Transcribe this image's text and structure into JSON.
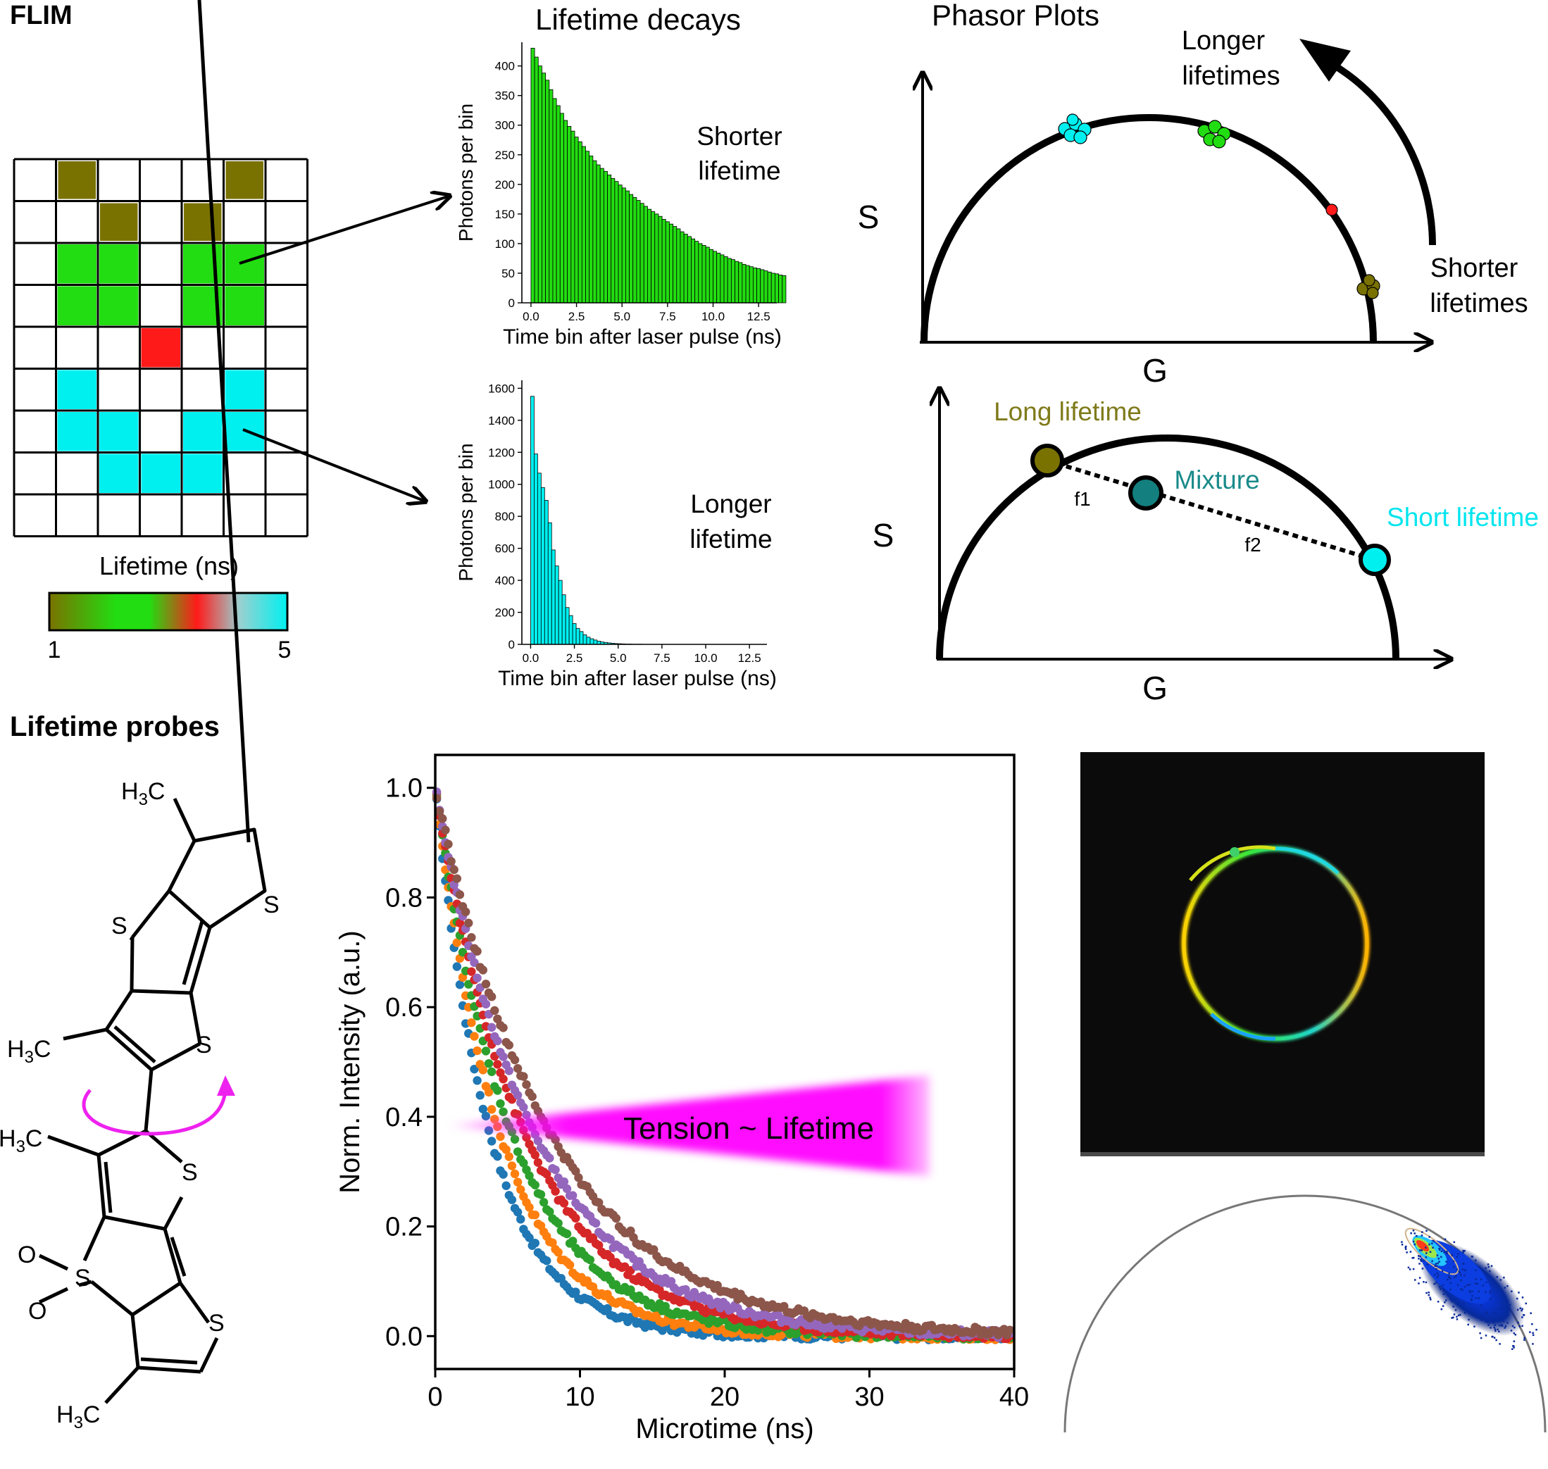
{
  "colors": {
    "olive": "#7a7200",
    "green": "#22dd11",
    "red": "#ff1a1a",
    "cyan": "#00f0f0",
    "teal": "#137f7f",
    "magenta": "#ff00ff",
    "long_label": "#7f7a1a",
    "mixture_label": "#1a8a8a",
    "short_label": "#00e5ee"
  },
  "flim": {
    "heading": "FLIM",
    "colorbar_label": "Lifetime (ns)",
    "colorbar_min": "1",
    "colorbar_max": "5",
    "grid": [
      [
        "w",
        "o",
        "w",
        "w",
        "w",
        "o",
        "w"
      ],
      [
        "w",
        "w",
        "o",
        "w",
        "o",
        "w",
        "w"
      ],
      [
        "w",
        "g",
        "g",
        "w",
        "g",
        "g",
        "w"
      ],
      [
        "w",
        "g",
        "g",
        "w",
        "g",
        "g",
        "w"
      ],
      [
        "w",
        "w",
        "w",
        "r",
        "w",
        "w",
        "w"
      ],
      [
        "w",
        "c",
        "w",
        "w",
        "w",
        "c",
        "w"
      ],
      [
        "w",
        "c",
        "c",
        "w",
        "c",
        "c",
        "w"
      ],
      [
        "w",
        "w",
        "c",
        "c",
        "c",
        "w",
        "w"
      ],
      [
        "w",
        "w",
        "w",
        "w",
        "w",
        "w",
        "w"
      ]
    ]
  },
  "decays": {
    "heading": "Lifetime decays",
    "top_label_1": "Shorter",
    "top_label_2": "lifetime",
    "bottom_label_1": "Longer",
    "bottom_label_2": "lifetime"
  },
  "phasor": {
    "heading": "Phasor Plots",
    "s_label": "S",
    "g_label": "G",
    "longer_1": "Longer",
    "longer_2": "lifetimes",
    "shorter_1": "Shorter",
    "shorter_2": "lifetimes",
    "long_lifetime": "Long lifetime",
    "mixture": "Mixture",
    "short_lifetime": "Short lifetime",
    "f1": "f1",
    "f2": "f2"
  },
  "probes": {
    "heading": "Lifetime probes",
    "tension_label": "Tension ~ Lifetime",
    "atoms": {
      "h3c": "H",
      "sub3": "3",
      "c": "C",
      "s": "S",
      "o": "O"
    }
  },
  "chart_data": [
    {
      "type": "bar",
      "id": "short-decay",
      "xlabel": "Time bin after laser pulse (ns)",
      "ylabel": "Photons per bin",
      "xlim": [
        -0.5,
        13.5
      ],
      "ylim": [
        0,
        440
      ],
      "xticks": [
        0.0,
        2.5,
        5.0,
        7.5,
        10.0,
        12.5
      ],
      "xtick_labels": [
        "0.0",
        "2.5",
        "5.0",
        "7.5",
        "10.0",
        "12.5"
      ],
      "yticks": [
        0,
        50,
        100,
        150,
        200,
        250,
        300,
        350,
        400
      ],
      "bin_width": 0.2,
      "x_start": 0.0,
      "values": [
        430,
        415,
        400,
        388,
        376,
        360,
        345,
        333,
        320,
        308,
        298,
        290,
        280,
        272,
        264,
        256,
        248,
        240,
        233,
        227,
        222,
        216,
        210,
        205,
        199,
        194,
        189,
        183,
        178,
        173,
        168,
        163,
        158,
        154,
        150,
        146,
        141,
        137,
        133,
        129,
        125,
        120,
        116,
        112,
        108,
        104,
        100,
        97,
        94,
        90,
        87,
        84,
        81,
        78,
        75,
        73,
        70,
        68,
        65,
        63,
        61,
        59,
        58,
        56,
        54,
        52,
        50,
        49,
        47,
        46
      ],
      "color": "#22dd11"
    },
    {
      "type": "bar",
      "id": "long-decay",
      "xlabel": "Time bin after laser pulse (ns)",
      "ylabel": "Photons per bin",
      "xlim": [
        -0.5,
        13.5
      ],
      "ylim": [
        0,
        1650
      ],
      "xticks": [
        0.0,
        2.5,
        5.0,
        7.5,
        10.0,
        12.5
      ],
      "xtick_labels": [
        "0.0",
        "2.5",
        "5.0",
        "7.5",
        "10.0",
        "12.5"
      ],
      "yticks": [
        0,
        200,
        400,
        600,
        800,
        1000,
        1200,
        1400,
        1600
      ],
      "bin_width": 0.2,
      "x_start": 0.0,
      "values": [
        1550,
        1190,
        1070,
        980,
        900,
        760,
        590,
        490,
        400,
        310,
        230,
        180,
        130,
        100,
        80,
        60,
        45,
        35,
        27,
        20,
        15,
        12,
        9,
        7,
        5,
        4,
        3,
        2,
        2,
        1,
        1,
        1,
        0,
        0,
        0,
        0,
        0,
        0,
        0,
        0,
        0,
        0,
        0,
        0,
        0,
        0,
        0,
        0,
        0,
        0,
        0,
        0,
        0,
        0,
        0,
        0,
        0,
        0,
        0,
        0,
        0,
        0,
        0,
        0,
        0
      ],
      "color": "#00f0f0"
    },
    {
      "type": "scatter",
      "id": "microtime-decays",
      "xlabel": "Microtime (ns)",
      "ylabel": "Norm. Intensity (a.u.)",
      "xlim": [
        0,
        40
      ],
      "ylim": [
        -0.06,
        1.06
      ],
      "xticks": [
        0,
        10,
        20,
        30,
        40
      ],
      "xtick_labels": [
        "0",
        "10",
        "20",
        "30",
        "40"
      ],
      "yticks": [
        0.0,
        0.2,
        0.4,
        0.6,
        0.8,
        1.0
      ],
      "ytick_labels": [
        "0.0",
        "0.2",
        "0.4",
        "0.6",
        "0.8",
        "1.0"
      ],
      "series": [
        {
          "tau": 3.8,
          "color": "#1f77b4"
        },
        {
          "tau": 4.5,
          "color": "#ff7f0e"
        },
        {
          "tau": 5.3,
          "color": "#2ca02c"
        },
        {
          "tau": 6.2,
          "color": "#d62728"
        },
        {
          "tau": 6.9,
          "color": "#9467bd"
        },
        {
          "tau": 8.0,
          "color": "#8c564b"
        }
      ]
    }
  ]
}
